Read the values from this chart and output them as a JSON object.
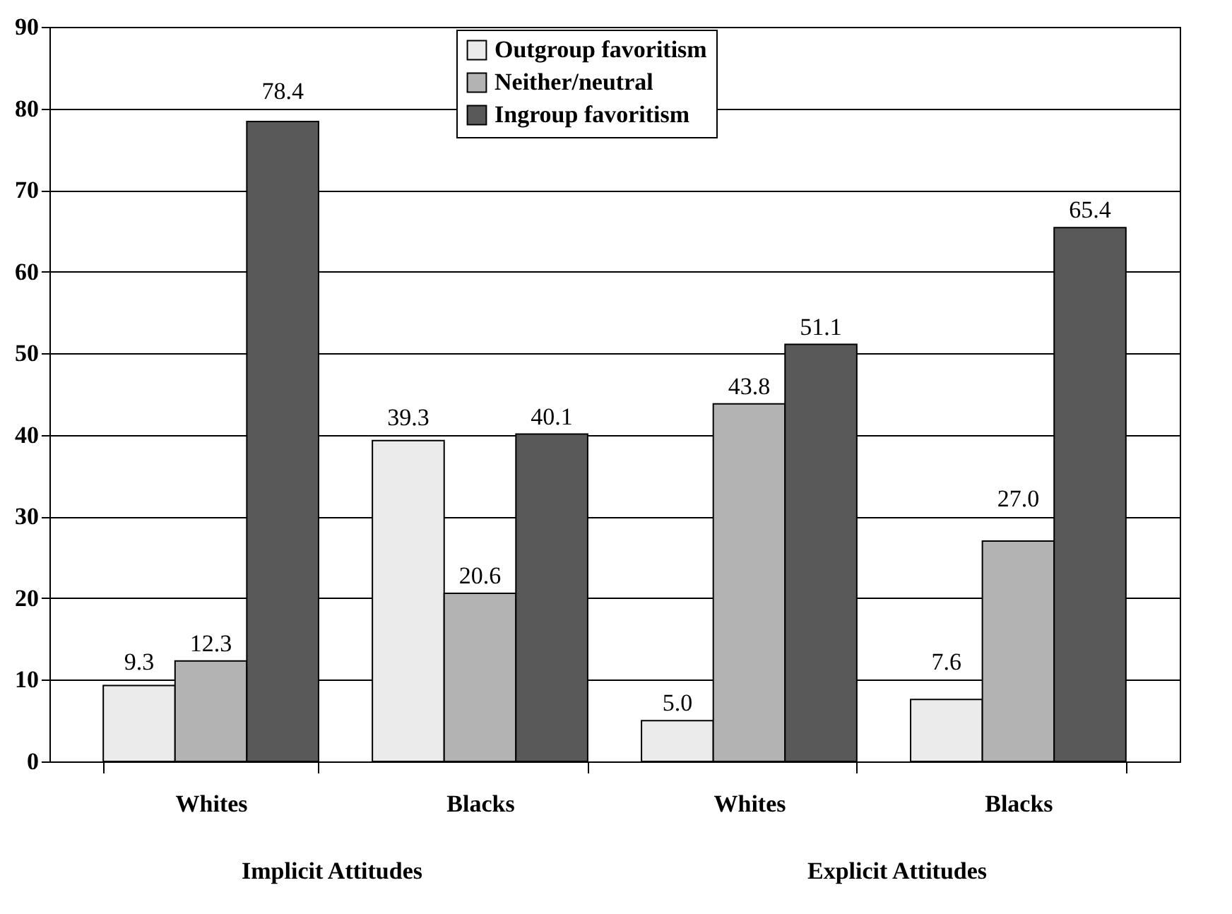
{
  "chart_data": {
    "type": "bar",
    "categories": [
      "Whites",
      "Blacks",
      "Whites",
      "Blacks"
    ],
    "series": [
      {
        "name": "Outgroup favoritism",
        "color": "#ebebeb",
        "values": [
          9.3,
          39.3,
          5.0,
          7.6
        ],
        "value_labels": [
          "9.3",
          "39.3",
          "5.0",
          "7.6"
        ]
      },
      {
        "name": "Neither/neutral",
        "color": "#b3b3b3",
        "values": [
          12.3,
          20.6,
          43.8,
          27.0
        ],
        "value_labels": [
          "12.3",
          "20.6",
          "43.8",
          "27.0"
        ]
      },
      {
        "name": "Ingroup favoritism",
        "color": "#595959",
        "values": [
          78.4,
          40.1,
          51.1,
          65.4
        ],
        "value_labels": [
          "78.4",
          "40.1",
          "51.1",
          "65.4"
        ]
      }
    ],
    "annotations": [
      "Implicit Attitudes",
      "Explicit Attitudes"
    ],
    "ylim": [
      0,
      90
    ],
    "yticks": [
      0,
      10,
      20,
      30,
      40,
      50,
      60,
      70,
      80,
      90
    ],
    "grid": "y",
    "legend": "top"
  }
}
